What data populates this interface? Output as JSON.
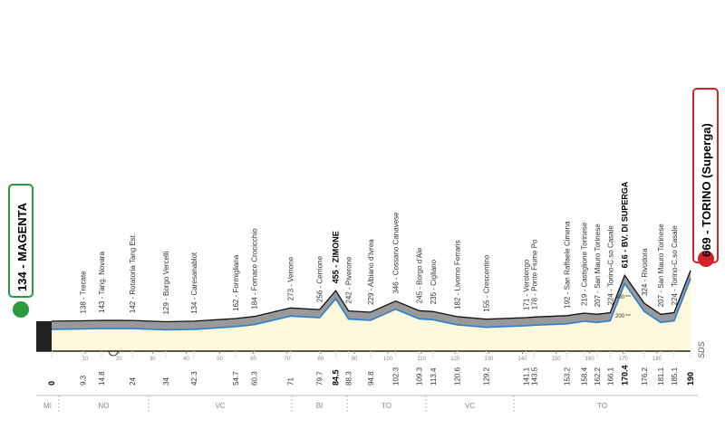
{
  "chart_data": {
    "type": "area",
    "x": [
      0.0,
      9.3,
      14.8,
      24.0,
      34.0,
      42.3,
      54.7,
      60.3,
      71.0,
      79.7,
      84.5,
      88.3,
      94.8,
      102.3,
      109.3,
      113.4,
      120.6,
      129.2,
      141.1,
      143.5,
      153.2,
      158.4,
      162.2,
      166.1,
      170.4,
      176.2,
      181.1,
      185.1,
      190.0
    ],
    "values": [
      134,
      138,
      143,
      142,
      129,
      134,
      162,
      184,
      273,
      256,
      455,
      242,
      229,
      346,
      245,
      235,
      182,
      155,
      171,
      178,
      192,
      219,
      207,
      224,
      616,
      324,
      207,
      224,
      669
    ],
    "value_labels": [
      "134 - MAGENTA",
      "138 - Trecate",
      "143 - Tang. Novara",
      "142 - Rotatoria Tang Est.",
      "129 - Borgo Vercelli",
      "134 - Caresanablot",
      "162 - Formigliana",
      "184 - Fornace Crocicchio",
      "273 - Verrone",
      "256 - Cerrione",
      "455 - ZIMONE",
      "242 - Piverone",
      "229 - Albiano d'Ivrea",
      "346 - Cossano Canavese",
      "245 - Borgo d'Ale",
      "235 - Cigliano",
      "182 - Livorno Ferraris",
      "155 - Crescentino",
      "171 - Verolengo",
      "178 - Ponte Fiume Po",
      "192 - San Raffaele Cimena",
      "219 - Castiglione Torinese",
      "207 - San Mauro Torinese",
      "224 - Torino-C.so Casale",
      "616 - BV. DI SUPERGA",
      "324 - Rivodora",
      "207 - San Mauro Torinese",
      "224 - Torino-C.so Casale",
      "669 - TORINO (Superga)"
    ],
    "bold": [
      0,
      10,
      24,
      28
    ],
    "xlim": [
      0,
      190
    ],
    "xticks": [
      10,
      20,
      30,
      40,
      50,
      60,
      70,
      80,
      90,
      100,
      110,
      120,
      130,
      140,
      150,
      160,
      170,
      180
    ],
    "ylim": [
      -200,
      800
    ],
    "yticks": [
      200,
      400
    ],
    "regions": [
      "MI",
      "NO",
      "VC",
      "BI",
      "TO",
      "VC",
      "TO"
    ],
    "logo": "SDS"
  }
}
